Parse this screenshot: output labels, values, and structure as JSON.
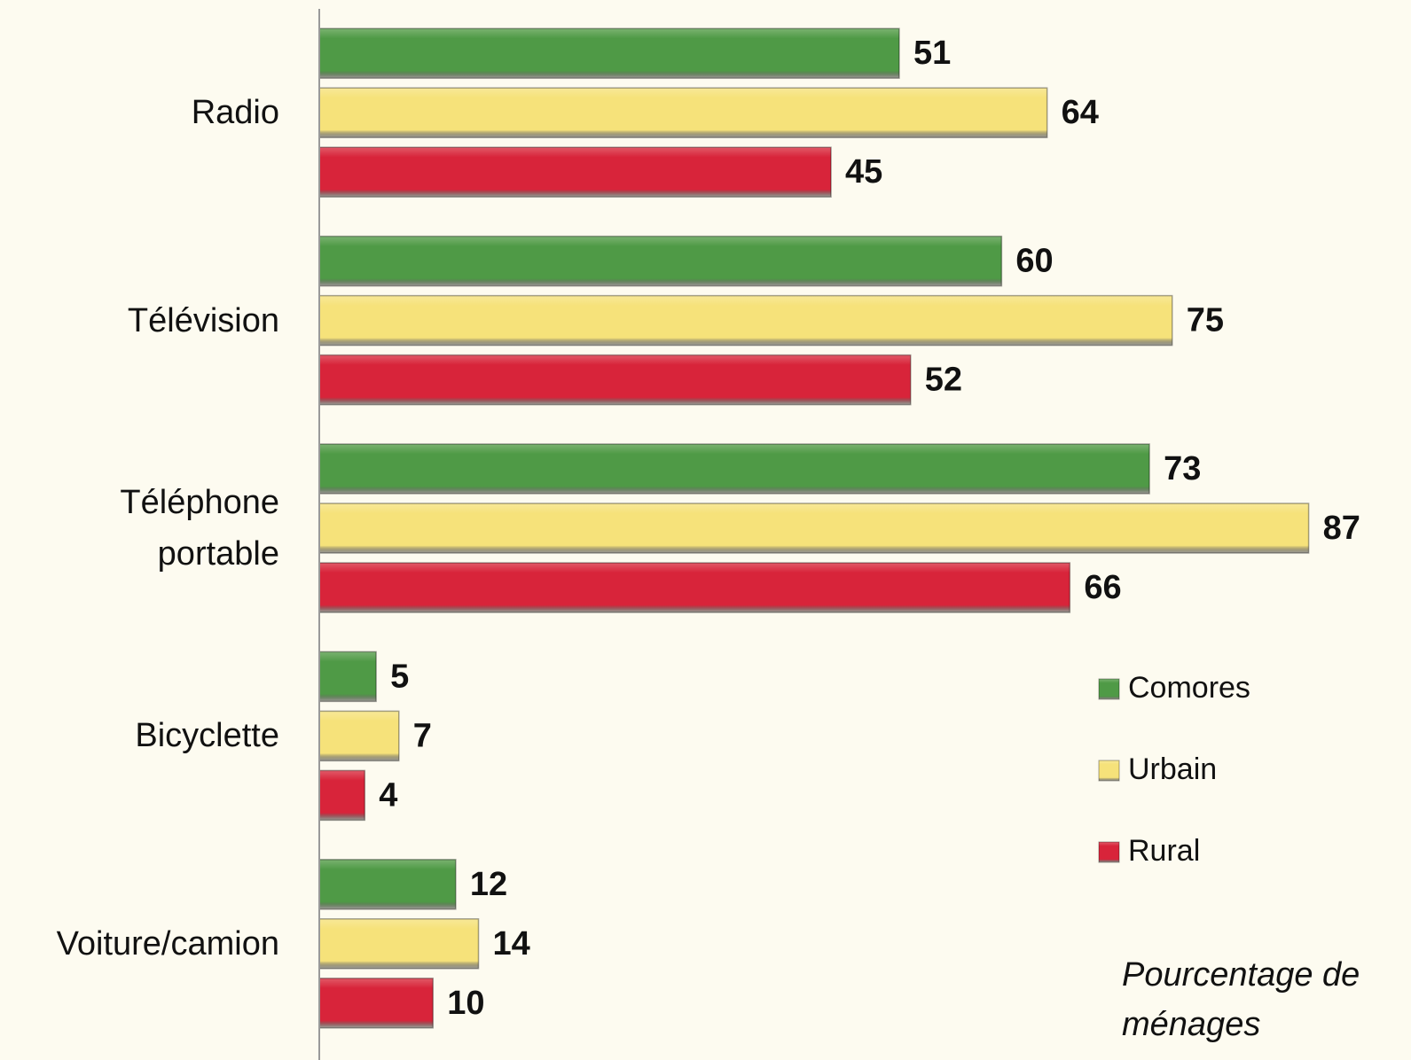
{
  "chart_data": {
    "type": "bar",
    "orientation": "horizontal",
    "categories": [
      "Radio",
      "Télévision",
      "Téléphone portable",
      "Bicyclette",
      "Voiture/camion"
    ],
    "series": [
      {
        "name": "Comores",
        "color": "#4f9a46",
        "values": [
          51,
          60,
          73,
          5,
          12
        ]
      },
      {
        "name": "Urbain",
        "color": "#f6e27a",
        "values": [
          64,
          75,
          87,
          7,
          14
        ]
      },
      {
        "name": "Rural",
        "color": "#d8243a",
        "values": [
          45,
          52,
          66,
          4,
          10
        ]
      }
    ],
    "xlim": [
      0,
      96
    ],
    "annotation": "Pourcentage de ménages"
  }
}
